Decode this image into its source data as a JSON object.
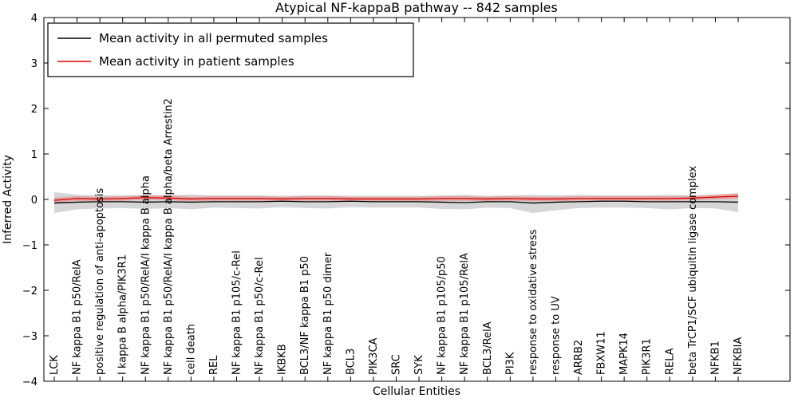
{
  "chart_data": {
    "type": "line",
    "title": "Atypical NF-kappaB pathway -- 842 samples",
    "xlabel": "Cellular Entities",
    "ylabel": "Inferred Activity",
    "ylim": [
      -4,
      4
    ],
    "yticks": [
      -4,
      -3,
      -2,
      -1,
      0,
      1,
      2,
      3,
      4
    ],
    "grid": false,
    "legend_position": "upper-left",
    "legend": [
      {
        "label": "Mean activity in all permuted samples",
        "color": "#000000"
      },
      {
        "label": "Mean activity in patient samples",
        "color": "#e00000"
      }
    ],
    "categories": [
      "LCK",
      "NF kappa B1 p50/RelA",
      "positive regulation of anti-apoptosis",
      "I kappa B alpha/PIK3R1",
      "NF kappa B1 p50/RelA/I kappa B alpha",
      "NF kappa B1 p50/RelA/I kappa B alpha/beta Arrestin2",
      "cell death",
      "REL",
      "NF kappa B1 p105/c-Rel",
      "NF kappa B1 p50/c-Rel",
      "IKBKB",
      "BCL3/NF kappa B1 p50",
      "NF kappa B1 p50 dimer",
      "BCL3",
      "PIK3CA",
      "SRC",
      "SYK",
      "NF kappa B1 p105/p50",
      "NF kappa B1 p105/RelA",
      "BCL3/RelA",
      "PI3K",
      "response to oxidative stress",
      "response to UV",
      "ARRB2",
      "FBXW11",
      "MAPK14",
      "PIK3R1",
      "RELA",
      "beta TrCP1/SCF ubiquitin ligase complex",
      "NFKB1",
      "NFKBIA"
    ],
    "series": [
      {
        "name": "Mean activity in all permuted samples",
        "color": "#000000",
        "values": [
          -0.08,
          -0.06,
          -0.05,
          -0.05,
          -0.06,
          -0.05,
          -0.06,
          -0.05,
          -0.05,
          -0.05,
          -0.04,
          -0.05,
          -0.05,
          -0.04,
          -0.05,
          -0.05,
          -0.05,
          -0.06,
          -0.07,
          -0.05,
          -0.05,
          -0.08,
          -0.06,
          -0.05,
          -0.04,
          -0.04,
          -0.05,
          -0.05,
          -0.05,
          -0.05,
          -0.06
        ]
      },
      {
        "name": "Mean activity in patient samples",
        "color": "#e00000",
        "values": [
          -0.02,
          0.02,
          0.01,
          0.02,
          0.04,
          0.03,
          0.01,
          0.02,
          0.02,
          0.02,
          0.01,
          0.02,
          0.02,
          0.01,
          0.01,
          0.01,
          0.01,
          0.02,
          0.02,
          0.01,
          0.02,
          0.01,
          0.01,
          0.02,
          0.02,
          0.02,
          0.02,
          0.02,
          0.03,
          0.05,
          0.07
        ]
      }
    ],
    "bands": [
      {
        "name": "permuted-samples-range",
        "color": "rgba(0,0,0,0.16)",
        "upper": [
          0.16,
          0.1,
          0.09,
          0.09,
          0.09,
          0.09,
          0.11,
          0.09,
          0.09,
          0.09,
          0.08,
          0.09,
          0.09,
          0.08,
          0.08,
          0.08,
          0.08,
          0.09,
          0.1,
          0.08,
          0.09,
          0.1,
          0.09,
          0.1,
          0.09,
          0.09,
          0.09,
          0.1,
          0.09,
          0.1,
          0.14
        ],
        "lower": [
          -0.3,
          -0.22,
          -0.2,
          -0.19,
          -0.21,
          -0.19,
          -0.22,
          -0.18,
          -0.19,
          -0.2,
          -0.17,
          -0.19,
          -0.2,
          -0.17,
          -0.18,
          -0.18,
          -0.18,
          -0.21,
          -0.22,
          -0.18,
          -0.19,
          -0.3,
          -0.24,
          -0.19,
          -0.18,
          -0.18,
          -0.19,
          -0.22,
          -0.19,
          -0.2,
          -0.28
        ]
      },
      {
        "name": "patient-samples-range",
        "color": "rgba(255,0,0,0.22)",
        "upper": [
          0.04,
          0.07,
          0.06,
          0.07,
          0.1,
          0.09,
          0.06,
          0.07,
          0.07,
          0.07,
          0.06,
          0.07,
          0.07,
          0.06,
          0.06,
          0.06,
          0.06,
          0.07,
          0.07,
          0.06,
          0.07,
          0.06,
          0.06,
          0.07,
          0.07,
          0.07,
          0.07,
          0.07,
          0.08,
          0.11,
          0.13
        ],
        "lower": [
          -0.08,
          -0.03,
          -0.04,
          -0.03,
          -0.01,
          -0.02,
          -0.04,
          -0.03,
          -0.03,
          -0.03,
          -0.04,
          -0.03,
          -0.03,
          -0.04,
          -0.04,
          -0.04,
          -0.04,
          -0.03,
          -0.03,
          -0.04,
          -0.03,
          -0.04,
          -0.04,
          -0.03,
          -0.03,
          -0.03,
          -0.03,
          -0.03,
          -0.02,
          0.0,
          0.01
        ]
      }
    ]
  }
}
